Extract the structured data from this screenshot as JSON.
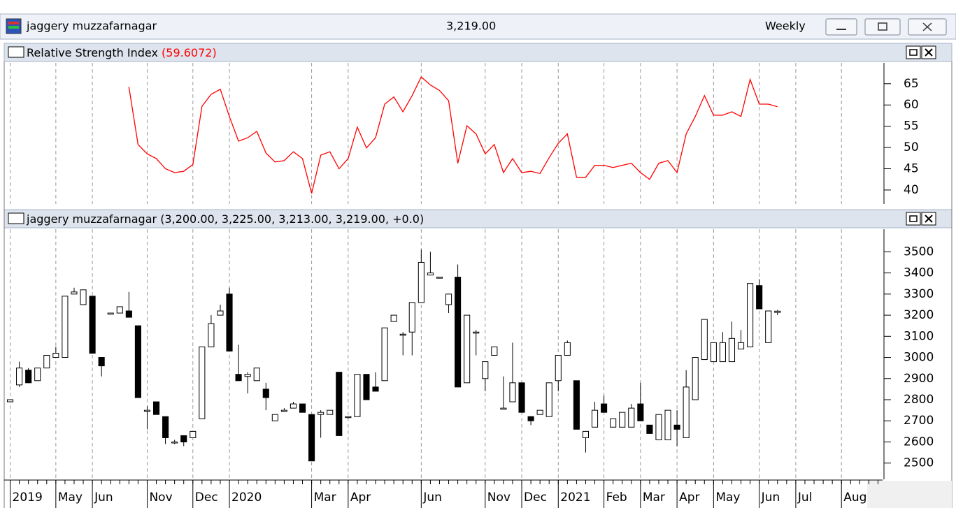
{
  "window": {
    "title": "jaggery muzzafarnagar",
    "price": "3,219.00",
    "interval": "Weekly"
  },
  "chart_data": [
    {
      "type": "line",
      "title": "Relative Strength Index",
      "value_label": "(59.6072)",
      "color": "#ff0000",
      "values": [
        null,
        null,
        null,
        null,
        null,
        null,
        null,
        null,
        null,
        null,
        null,
        null,
        null,
        64.3,
        50.7,
        48.5,
        47.4,
        45,
        44.1,
        44.4,
        46,
        59.7,
        62.5,
        63.7,
        57.3,
        51.5,
        52.3,
        53.8,
        48.7,
        46.6,
        46.9,
        49,
        47.4,
        39.2,
        48.2,
        49,
        45,
        47.4,
        54.8,
        49.9,
        52.3,
        60.2,
        61.9,
        58.4,
        62.2,
        66.6,
        64.7,
        63.4,
        61,
        46.3,
        55.1,
        53.2,
        48.5,
        50.7,
        44.1,
        47.4,
        44.1,
        44.4,
        43.9,
        47.6,
        51,
        53.2,
        43,
        43,
        45.8,
        45.8,
        45.3,
        45.8,
        46.3,
        44.1,
        42.5,
        46.3,
        46.9,
        44.1,
        53.2,
        57.3,
        62.2,
        57.6,
        57.6,
        58.4,
        57.3,
        66,
        60.2,
        60.2,
        59.6,
        null,
        null,
        null,
        null,
        null,
        null,
        null,
        null,
        null,
        null,
        null
      ],
      "ylim": [
        36.7,
        69.9
      ],
      "yticks": [
        40,
        45,
        50,
        55,
        60,
        65
      ],
      "xgrid": true
    },
    {
      "type": "candlestick",
      "title": "jaggery muzzafarnagar",
      "value_label": "(3,200.00, 3,225.00, 3,213.00, 3,219.00, +0.0)",
      "categories": [
        "2019",
        null,
        null,
        null,
        null,
        "May",
        null,
        null,
        null,
        "Jun",
        null,
        null,
        null,
        null,
        null,
        "Nov",
        null,
        null,
        null,
        null,
        "Dec",
        null,
        null,
        null,
        "2020",
        null,
        null,
        null,
        null,
        null,
        null,
        null,
        null,
        "Mar",
        null,
        null,
        null,
        "Apr",
        null,
        null,
        null,
        null,
        null,
        null,
        null,
        "Jun",
        null,
        null,
        null,
        null,
        null,
        null,
        "Nov",
        null,
        null,
        null,
        "Dec",
        null,
        null,
        null,
        "2021",
        null,
        null,
        null,
        null,
        "Feb",
        null,
        null,
        null,
        "Mar",
        null,
        null,
        null,
        "Apr",
        null,
        null,
        null,
        "May",
        null,
        null,
        null,
        null,
        "Jun",
        null,
        null,
        null,
        "Jul",
        null,
        null,
        null,
        null,
        "Aug",
        null,
        null,
        null,
        null
      ],
      "open": [
        2790,
        2870,
        2940,
        2890,
        2950,
        3000,
        3000,
        3300,
        3250,
        3290,
        3000,
        3210,
        3210,
        3220,
        3150,
        2750,
        2790,
        2720,
        2600,
        2630,
        2620,
        2710,
        3050,
        3200,
        3300,
        2920,
        2910,
        2890,
        2850,
        2700,
        2750,
        2760,
        2780,
        2730,
        2730,
        2730,
        2930,
        2720,
        2720,
        2920,
        2860,
        2890,
        3170,
        3110,
        3120,
        3260,
        3390,
        3380,
        3250,
        3380,
        2880,
        3120,
        2900,
        3010,
        2760,
        2790,
        2880,
        2720,
        2730,
        2720,
        2890,
        3010,
        2890,
        2620,
        2670,
        2780,
        2670,
        2670,
        2670,
        2780,
        2680,
        2610,
        2610,
        2680,
        2620,
        2800,
        2990,
        2980,
        2980,
        2980,
        3040,
        3050,
        3340,
        3070,
        3213,
        null,
        null,
        null,
        null,
        null,
        null,
        null,
        null,
        null,
        null,
        null
      ],
      "high": [
        2800,
        2980,
        2950,
        2950,
        3010,
        3050,
        3290,
        3330,
        3320,
        3290,
        3000,
        3210,
        3240,
        3310,
        3150,
        2770,
        2790,
        2720,
        2610,
        2630,
        2650,
        3050,
        3200,
        3250,
        3330,
        3060,
        2930,
        2950,
        2880,
        2730,
        2760,
        2790,
        2780,
        2730,
        2750,
        2750,
        2930,
        2720,
        2920,
        2920,
        2930,
        3140,
        3200,
        3120,
        3260,
        3510,
        3500,
        3380,
        3300,
        3440,
        3200,
        3130,
        2980,
        3050,
        2910,
        3070,
        2880,
        2720,
        2750,
        2880,
        3010,
        3080,
        2890,
        2650,
        2790,
        2820,
        2710,
        2740,
        2780,
        2880,
        2680,
        2730,
        2750,
        2750,
        2940,
        3000,
        3180,
        3070,
        3120,
        3170,
        3130,
        3350,
        3370,
        3220,
        3225,
        null,
        null,
        null,
        null,
        null,
        null,
        null,
        null,
        null,
        null,
        null
      ],
      "low": [
        2790,
        2860,
        2880,
        2890,
        2950,
        3000,
        3000,
        3300,
        3250,
        3020,
        2910,
        3210,
        3210,
        3190,
        2810,
        2660,
        2730,
        2590,
        2590,
        2580,
        2620,
        2710,
        3050,
        3200,
        3030,
        2890,
        2830,
        2890,
        2750,
        2700,
        2750,
        2760,
        2740,
        2510,
        2620,
        2730,
        2630,
        2710,
        2720,
        2800,
        2840,
        2890,
        3170,
        3010,
        3010,
        3260,
        3390,
        3380,
        3210,
        2860,
        2880,
        3010,
        2840,
        3010,
        2760,
        2790,
        2740,
        2680,
        2730,
        2720,
        2840,
        3010,
        2660,
        2550,
        2670,
        2740,
        2670,
        2670,
        2670,
        2700,
        2640,
        2610,
        2610,
        2580,
        2620,
        2800,
        2990,
        2980,
        2980,
        2980,
        3040,
        3050,
        3230,
        3070,
        3200,
        null,
        null,
        null,
        null,
        null,
        null,
        null,
        null,
        null,
        null,
        null
      ],
      "close": [
        2800,
        2950,
        2880,
        2950,
        3010,
        3020,
        3290,
        3310,
        3320,
        3020,
        2960,
        3210,
        3240,
        3190,
        2810,
        2750,
        2730,
        2620,
        2600,
        2600,
        2650,
        3050,
        3160,
        3220,
        3030,
        2890,
        2920,
        2950,
        2810,
        2730,
        2750,
        2780,
        2740,
        2510,
        2740,
        2750,
        2630,
        2720,
        2920,
        2800,
        2840,
        3140,
        3200,
        3110,
        3260,
        3450,
        3400,
        3380,
        3300,
        2860,
        3200,
        3120,
        2980,
        3050,
        2760,
        2880,
        2740,
        2700,
        2750,
        2880,
        3010,
        3070,
        2660,
        2650,
        2750,
        2740,
        2710,
        2740,
        2760,
        2700,
        2640,
        2730,
        2750,
        2660,
        2860,
        3000,
        3180,
        3070,
        3070,
        3090,
        3070,
        3350,
        3230,
        3220,
        3219,
        null,
        null,
        null,
        null,
        null,
        null,
        null,
        null,
        null,
        null,
        null
      ],
      "ylim": [
        2423,
        3607
      ],
      "yticks": [
        2500,
        2600,
        2700,
        2800,
        2900,
        3000,
        3100,
        3200,
        3300,
        3400,
        3500
      ],
      "up_color": "#ffffff",
      "down_color": "#000000",
      "xgrid": true
    }
  ]
}
